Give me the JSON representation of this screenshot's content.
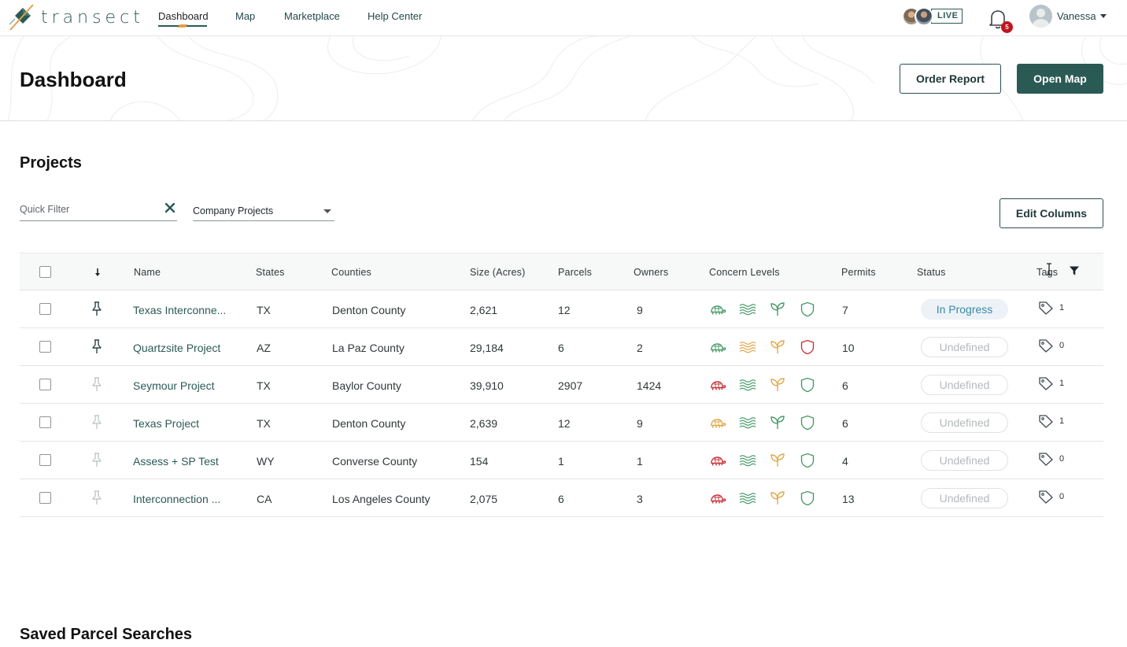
{
  "nav": {
    "brand": "transect",
    "links": [
      "Dashboard",
      "Map",
      "Marketplace",
      "Help Center"
    ],
    "live_label": "LIVE",
    "notification_count": "5",
    "user_name": "Vanessa"
  },
  "header": {
    "title": "Dashboard",
    "order_report": "Order Report",
    "open_map": "Open Map"
  },
  "projects": {
    "title": "Projects",
    "quick_filter_placeholder": "Quick Filter",
    "scope": "Company Projects",
    "edit_columns": "Edit Columns",
    "columns": [
      "Name",
      "States",
      "Counties",
      "Size (Acres)",
      "Parcels",
      "Owners",
      "Concern Levels",
      "Permits",
      "Status",
      "Tags"
    ],
    "rows": [
      {
        "pinned": true,
        "name": "Texas Interconne...",
        "state": "TX",
        "county": "Denton County",
        "size": "2,621",
        "parcels": "12",
        "owners": "9",
        "concern": [
          "#4a9a6a",
          "#4a9a6a",
          "#4a9a6a",
          "#4a9a6a"
        ],
        "permits": "7",
        "status": "In Progress",
        "tags": "1"
      },
      {
        "pinned": true,
        "name": "Quartzsite Project",
        "state": "AZ",
        "county": "La Paz County",
        "size": "29,184",
        "parcels": "6",
        "owners": "2",
        "concern": [
          "#4a9a6a",
          "#e0a84a",
          "#e0a84a",
          "#c6343c"
        ],
        "permits": "10",
        "status": "Undefined",
        "tags": "0"
      },
      {
        "pinned": false,
        "name": "Seymour Project",
        "state": "TX",
        "county": "Baylor County",
        "size": "39,910",
        "parcels": "2907",
        "owners": "1424",
        "concern": [
          "#c6343c",
          "#4a9a6a",
          "#e0a84a",
          "#4a9a6a"
        ],
        "permits": "6",
        "status": "Undefined",
        "tags": "1"
      },
      {
        "pinned": false,
        "name": "Texas Project",
        "state": "TX",
        "county": "Denton County",
        "size": "2,639",
        "parcels": "12",
        "owners": "9",
        "concern": [
          "#e0a84a",
          "#4a9a6a",
          "#4a9a6a",
          "#4a9a6a"
        ],
        "permits": "6",
        "status": "Undefined",
        "tags": "1"
      },
      {
        "pinned": false,
        "name": "Assess + SP Test",
        "state": "WY",
        "county": "Converse County",
        "size": "154",
        "parcels": "1",
        "owners": "1",
        "concern": [
          "#c6343c",
          "#4a9a6a",
          "#e0a84a",
          "#4a9a6a"
        ],
        "permits": "4",
        "status": "Undefined",
        "tags": "0"
      },
      {
        "pinned": false,
        "name": "Interconnection ...",
        "state": "CA",
        "county": "Los Angeles County",
        "size": "2,075",
        "parcels": "6",
        "owners": "3",
        "concern": [
          "#c6343c",
          "#4a9a6a",
          "#e0a84a",
          "#4a9a6a"
        ],
        "permits": "13",
        "status": "Undefined",
        "tags": "0"
      }
    ]
  },
  "saved": {
    "title": "Saved Parcel Searches"
  },
  "icons": {
    "concern": [
      "turtle-icon",
      "wetlands-icon",
      "sprout-icon",
      "shield-icon"
    ],
    "pin": "pin-icon",
    "tag": "tag-icon",
    "filter": "filter-icon"
  },
  "colors": {
    "brand": "#2b5a55",
    "accent": "#e0a24a",
    "alert": "#c0161f"
  }
}
